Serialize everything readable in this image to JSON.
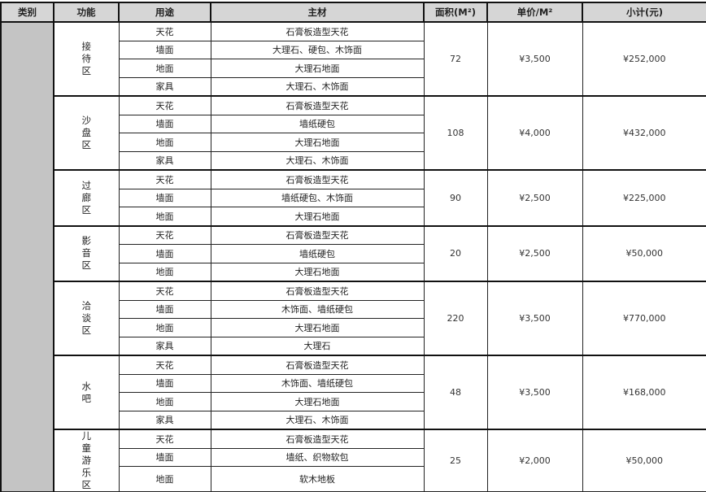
{
  "headers": [
    "类别",
    "功能",
    "用途",
    "主材",
    "面积(M²)",
    "单价/M²",
    "小计(元)"
  ],
  "category": "",
  "groups": [
    {
      "name": "接待区",
      "area": "72",
      "unit_price": "¥3,500",
      "subtotal": "¥252,000",
      "rows": [
        [
          "天花",
          "石膏板造型天花"
        ],
        [
          "墙面",
          "大理石、硬包、木饰面"
        ],
        [
          "地面",
          "大理石地面"
        ],
        [
          "家具",
          "大理石、木饰面"
        ]
      ]
    },
    {
      "name": "沙盘区",
      "area": "108",
      "unit_price": "¥4,000",
      "subtotal": "¥432,000",
      "rows": [
        [
          "天花",
          "石膏板造型天花"
        ],
        [
          "墙面",
          "墙纸硬包"
        ],
        [
          "地面",
          "大理石地面"
        ],
        [
          "家具",
          "大理石、木饰面"
        ]
      ]
    },
    {
      "name": "过廊区",
      "area": "90",
      "unit_price": "¥2,500",
      "subtotal": "¥225,000",
      "rows": [
        [
          "天花",
          "石膏板造型天花"
        ],
        [
          "墙面",
          "墙纸硬包、木饰面"
        ],
        [
          "地面",
          "大理石地面"
        ]
      ]
    },
    {
      "name": "影音区",
      "area": "20",
      "unit_price": "¥2,500",
      "subtotal": "¥50,000",
      "rows": [
        [
          "天花",
          "石膏板造型天花"
        ],
        [
          "墙面",
          "墙纸硬包"
        ],
        [
          "地面",
          "大理石地面"
        ]
      ]
    },
    {
      "name": "洽谈区",
      "area": "220",
      "unit_price": "¥3,500",
      "subtotal": "¥770,000",
      "rows": [
        [
          "天花",
          "石膏板造型天花"
        ],
        [
          "墙面",
          "木饰面、墙纸硬包"
        ],
        [
          "地面",
          "大理石地面"
        ],
        [
          "家具",
          "大理石"
        ]
      ]
    },
    {
      "name": "水吧",
      "area": "48",
      "unit_price": "¥3,500",
      "subtotal": "¥168,000",
      "rows": [
        [
          "天花",
          "石膏板造型天花"
        ],
        [
          "墙面",
          "木饰面、墙纸硬包"
        ],
        [
          "地面",
          "大理石地面"
        ],
        [
          "家具",
          "大理石、木饰面"
        ]
      ]
    },
    {
      "name": "儿童游乐区",
      "area": "25",
      "unit_price": "¥2,000",
      "subtotal": "¥50,000",
      "rows": [
        [
          "天花",
          "石膏板造型天花"
        ],
        [
          "墙面",
          "墙纸、织物软包"
        ],
        [
          "地面",
          "软木地板"
        ]
      ]
    }
  ]
}
